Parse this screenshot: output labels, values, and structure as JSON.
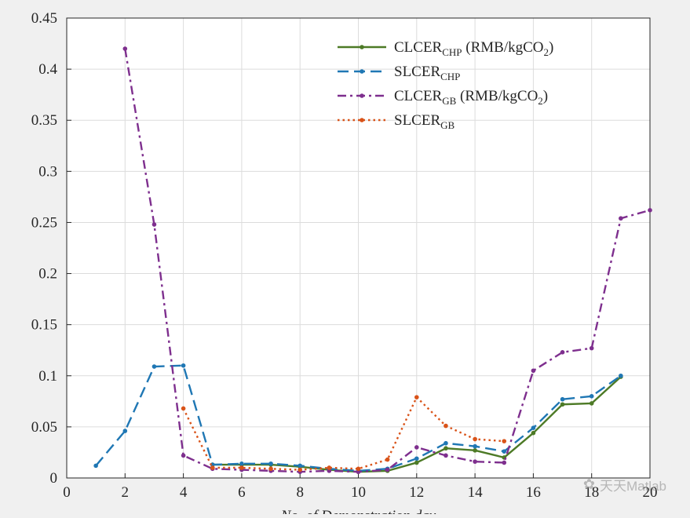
{
  "chart_data": {
    "type": "line",
    "xlabel": "No. of Demonstration day",
    "ylabel": "",
    "xlim": [
      0,
      20
    ],
    "ylim": [
      0,
      0.45
    ],
    "xticks": [
      0,
      2,
      4,
      6,
      8,
      10,
      12,
      14,
      16,
      18,
      20
    ],
    "yticks": [
      0,
      0.05,
      0.1,
      0.15,
      0.2,
      0.25,
      0.3,
      0.35,
      0.4,
      0.45
    ],
    "xtick_labels": [
      "0",
      "2",
      "4",
      "6",
      "8",
      "10",
      "12",
      "14",
      "16",
      "18",
      "20"
    ],
    "ytick_labels": [
      "0",
      "0.05",
      "0.1",
      "0.15",
      "0.2",
      "0.25",
      "0.3",
      "0.35",
      "0.4",
      "0.45"
    ],
    "grid": true,
    "legend_position": "top-right",
    "series": [
      {
        "name_main": "CLCER",
        "name_sub": "CHP",
        "name_suffix": " (RMB/kgCO",
        "name_suffix_sub": "2",
        "name_end": ")",
        "color": "#4d7a26",
        "dash": "solid",
        "x": [
          5,
          6,
          7,
          8,
          9,
          10,
          11,
          12,
          13,
          14,
          15,
          16,
          17,
          18,
          19
        ],
        "y": [
          0.013,
          0.013,
          0.013,
          0.011,
          0.008,
          0.006,
          0.007,
          0.015,
          0.029,
          0.027,
          0.02,
          0.044,
          0.072,
          0.073,
          0.099
        ]
      },
      {
        "name_main": "SLCER",
        "name_sub": "CHP",
        "name_suffix": "",
        "name_suffix_sub": "",
        "name_end": "",
        "color": "#1f77b4",
        "dash": "long",
        "x": [
          1,
          2,
          3,
          4,
          5,
          6,
          7,
          8,
          9,
          10,
          11,
          12,
          13,
          14,
          15,
          16,
          17,
          18,
          19
        ],
        "y": [
          0.012,
          0.046,
          0.109,
          0.11,
          0.013,
          0.014,
          0.014,
          0.012,
          0.009,
          0.007,
          0.009,
          0.019,
          0.034,
          0.031,
          0.026,
          0.049,
          0.077,
          0.08,
          0.1
        ]
      },
      {
        "name_main": "CLCER",
        "name_sub": "GB",
        "name_suffix": " (RMB/kgCO",
        "name_suffix_sub": "2",
        "name_end": ")",
        "color": "#7e2f8e",
        "dash": "dashdot",
        "x": [
          2,
          3,
          4,
          5,
          6,
          7,
          8,
          9,
          10,
          11,
          12,
          13,
          14,
          15,
          16,
          17,
          18,
          19,
          20
        ],
        "y": [
          0.42,
          0.248,
          0.022,
          0.009,
          0.008,
          0.007,
          0.006,
          0.007,
          0.006,
          0.008,
          0.03,
          0.022,
          0.016,
          0.015,
          0.105,
          0.123,
          0.127,
          0.254,
          0.262
        ]
      },
      {
        "name_main": "SLCER",
        "name_sub": "GB",
        "name_suffix": "",
        "name_suffix_sub": "",
        "name_end": "",
        "color": "#d95319",
        "dash": "dot",
        "x": [
          4,
          5,
          6,
          7,
          8,
          9,
          10,
          11,
          12,
          13,
          14,
          15
        ],
        "y": [
          0.068,
          0.01,
          0.01,
          0.009,
          0.008,
          0.01,
          0.009,
          0.018,
          0.079,
          0.051,
          0.038,
          0.036
        ]
      }
    ]
  },
  "watermark": {
    "icon": "wechat-icon",
    "text": "天天Matlab"
  }
}
